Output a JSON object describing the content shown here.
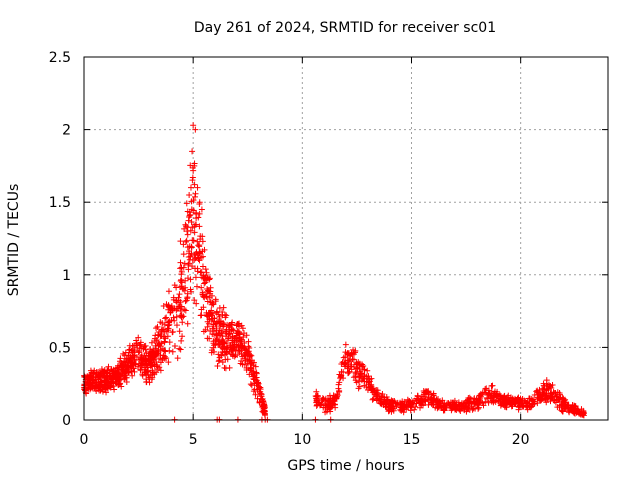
{
  "chart_data": {
    "type": "scatter",
    "title": "Day 261 of 2024, SRMTID for receiver sc01",
    "xlabel": "GPS time / hours",
    "ylabel": "SRMTID / TECUs",
    "xlim": [
      0,
      24
    ],
    "ylim": [
      0,
      2.5
    ],
    "xticks": [
      0,
      5,
      10,
      15,
      20
    ],
    "xtick_labels": [
      "0",
      "5",
      "10",
      "15",
      "20"
    ],
    "yticks": [
      0,
      0.5,
      1,
      1.5,
      2,
      2.5
    ],
    "ytick_labels": [
      "0",
      "0.5",
      "1",
      "1.5",
      "2",
      "2.5"
    ],
    "grid": true,
    "marker": "+",
    "series": [
      {
        "name": "sc01",
        "color": "#ff0000",
        "profile": [
          {
            "x": 0.0,
            "y": 0.25,
            "spread": 0.07
          },
          {
            "x": 0.5,
            "y": 0.28,
            "spread": 0.07
          },
          {
            "x": 1.0,
            "y": 0.27,
            "spread": 0.07
          },
          {
            "x": 1.5,
            "y": 0.3,
            "spread": 0.08
          },
          {
            "x": 2.0,
            "y": 0.38,
            "spread": 0.1
          },
          {
            "x": 2.5,
            "y": 0.45,
            "spread": 0.12
          },
          {
            "x": 3.0,
            "y": 0.36,
            "spread": 0.1
          },
          {
            "x": 3.5,
            "y": 0.55,
            "spread": 0.18
          },
          {
            "x": 4.0,
            "y": 0.7,
            "spread": 0.25
          },
          {
            "x": 4.5,
            "y": 0.85,
            "spread": 0.35
          },
          {
            "x": 5.0,
            "y": 1.4,
            "spread": 0.45
          },
          {
            "x": 5.5,
            "y": 0.9,
            "spread": 0.3
          },
          {
            "x": 6.0,
            "y": 0.6,
            "spread": 0.2
          },
          {
            "x": 6.5,
            "y": 0.55,
            "spread": 0.18
          },
          {
            "x": 7.0,
            "y": 0.55,
            "spread": 0.15
          },
          {
            "x": 7.5,
            "y": 0.45,
            "spread": 0.12
          },
          {
            "x": 8.0,
            "y": 0.2,
            "spread": 0.08
          },
          {
            "x": 8.3,
            "y": 0.05,
            "spread": 0.03
          }
        ],
        "profile2": [
          {
            "x": 10.6,
            "y": 0.15,
            "spread": 0.04
          },
          {
            "x": 11.0,
            "y": 0.1,
            "spread": 0.05
          },
          {
            "x": 11.5,
            "y": 0.12,
            "spread": 0.05
          },
          {
            "x": 12.0,
            "y": 0.45,
            "spread": 0.12
          },
          {
            "x": 12.5,
            "y": 0.35,
            "spread": 0.1
          },
          {
            "x": 13.0,
            "y": 0.28,
            "spread": 0.08
          },
          {
            "x": 13.5,
            "y": 0.15,
            "spread": 0.05
          },
          {
            "x": 14.0,
            "y": 0.1,
            "spread": 0.04
          },
          {
            "x": 15.0,
            "y": 0.1,
            "spread": 0.04
          },
          {
            "x": 15.7,
            "y": 0.16,
            "spread": 0.06
          },
          {
            "x": 16.5,
            "y": 0.09,
            "spread": 0.03
          },
          {
            "x": 17.5,
            "y": 0.1,
            "spread": 0.04
          },
          {
            "x": 18.7,
            "y": 0.18,
            "spread": 0.06
          },
          {
            "x": 19.5,
            "y": 0.12,
            "spread": 0.04
          },
          {
            "x": 20.5,
            "y": 0.12,
            "spread": 0.04
          },
          {
            "x": 21.2,
            "y": 0.2,
            "spread": 0.07
          },
          {
            "x": 22.0,
            "y": 0.1,
            "spread": 0.04
          },
          {
            "x": 22.9,
            "y": 0.05,
            "spread": 0.02
          }
        ],
        "zero_points": [
          4.15,
          6.1,
          6.2,
          7.05,
          8.15,
          8.3,
          8.4,
          10.6,
          11.3
        ]
      }
    ]
  }
}
